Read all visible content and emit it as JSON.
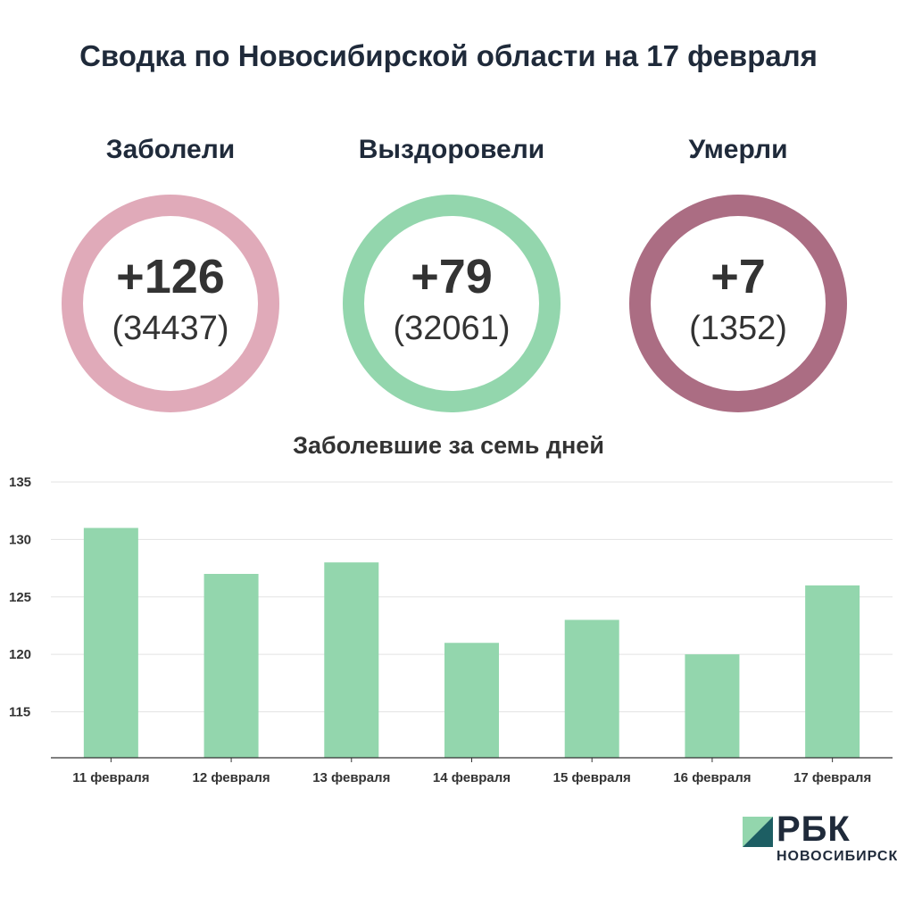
{
  "title": "Сводка по Новосибирской области на 17 февраля",
  "stats": [
    {
      "label": "Заболели",
      "delta": "+126",
      "total": "(34437)",
      "color": "#e0aab9"
    },
    {
      "label": "Выздоровели",
      "delta": "+79",
      "total": "(32061)",
      "color": "#93d6ad"
    },
    {
      "label": "Умерли",
      "delta": "+7",
      "total": "(1352)",
      "color": "#ab6d83"
    }
  ],
  "chart_data": {
    "type": "bar",
    "title": "Заболевшие за семь дней",
    "categories": [
      "11 февраля",
      "12 февраля",
      "13 февраля",
      "14 февраля",
      "15 февраля",
      "16 февраля",
      "17 февраля"
    ],
    "values": [
      131,
      127,
      128,
      121,
      123,
      120,
      126
    ],
    "ylim": [
      111,
      135
    ],
    "yticks": [
      115,
      120,
      125,
      130,
      135
    ],
    "grid": true,
    "bar_color": "#93d6ad",
    "xlabel": "",
    "ylabel": ""
  },
  "logo": {
    "name": "РБК",
    "sub": "НОВОСИБИРСК",
    "mark_color_light": "#93d6ad",
    "mark_color_dark": "#1d5e63"
  }
}
